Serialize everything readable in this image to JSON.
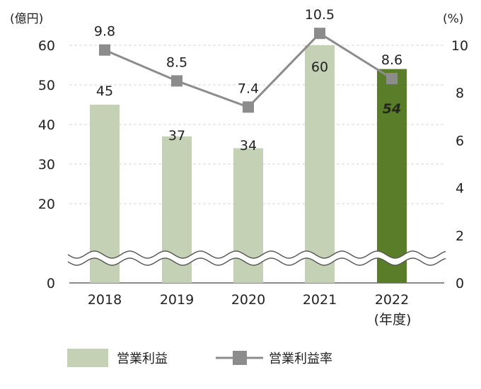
{
  "chart_data": {
    "type": "bar",
    "categories": [
      "2018",
      "2019",
      "2020",
      "2021",
      "2022"
    ],
    "x_unit_label": "(年度)",
    "series": [
      {
        "name": "営業利益",
        "kind": "bar",
        "axis": "left",
        "values": [
          45,
          37,
          34,
          60,
          54
        ],
        "data_labels": [
          "45",
          "37",
          "34",
          "60",
          "54"
        ],
        "color": "#c5d1b4",
        "highlight_color": "#5a7d2a",
        "highlight_index": 4
      },
      {
        "name": "営業利益率",
        "kind": "line",
        "axis": "right",
        "values": [
          9.8,
          8.5,
          7.4,
          10.5,
          8.6
        ],
        "data_labels": [
          "9.8",
          "8.5",
          "7.4",
          "10.5",
          "8.6"
        ],
        "color": "#8c8c8c",
        "marker": "square",
        "highlight_label_color": "#5a8a2a"
      }
    ],
    "y_left": {
      "label": "(億円)",
      "range": [
        0,
        60
      ],
      "ticks": [
        0,
        20,
        30,
        40,
        50,
        60
      ],
      "tick_labels": [
        "0",
        "20",
        "30",
        "40",
        "50",
        "60"
      ],
      "axis_break": true
    },
    "y_right": {
      "label": "(%)",
      "range": [
        0,
        10
      ],
      "ticks": [
        0,
        2,
        4,
        6,
        8,
        10
      ],
      "tick_labels": [
        "0",
        "2",
        "4",
        "6",
        "8",
        "10"
      ]
    },
    "grid": true,
    "legend": {
      "placement": "bottom-left",
      "entries": [
        "営業利益",
        "営業利益率"
      ]
    }
  }
}
